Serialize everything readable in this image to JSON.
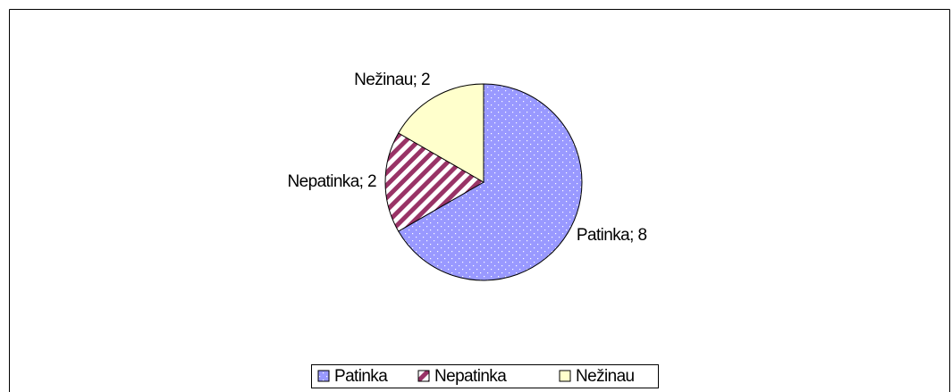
{
  "chart_data": {
    "type": "pie",
    "categories": [
      "Patinka",
      "Nepatinka",
      "Nežinau"
    ],
    "values": [
      8,
      2,
      2
    ],
    "value_labels": [
      "Patinka; 8",
      "Nepatinka; 2",
      "Nežinau; 2"
    ],
    "colors": [
      "#9999ff",
      "#993366",
      "#ffffcc"
    ],
    "legend": "bottom"
  }
}
